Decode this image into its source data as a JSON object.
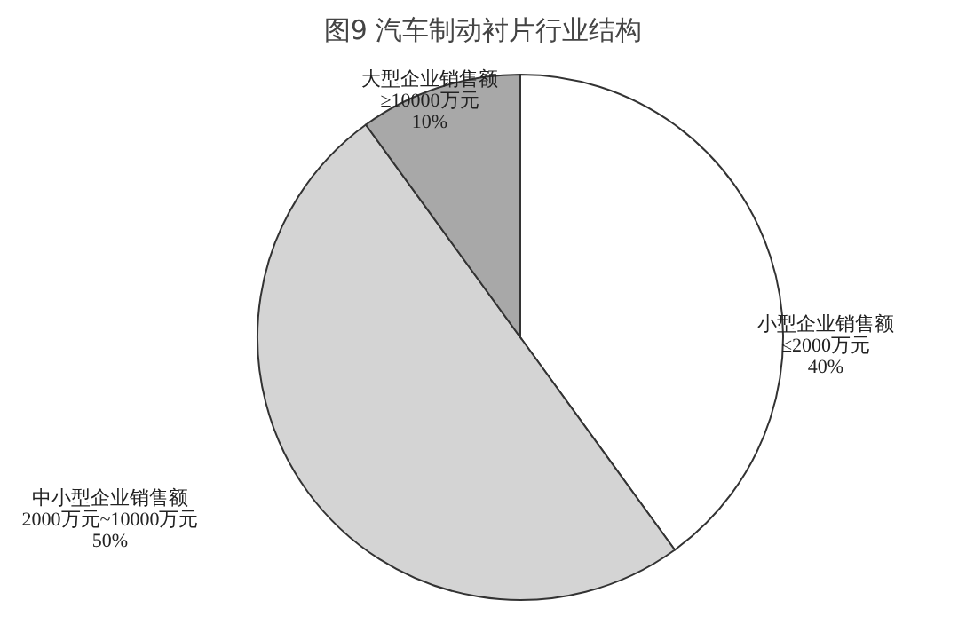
{
  "chart_data": {
    "type": "pie",
    "title": "图9  汽车制动衬片行业结构",
    "categories": [
      "小型企业销售额\n≤2000万元",
      "中小型企业销售额\n2000万元~10000万元",
      "大型企业销售额\n≥10000万元"
    ],
    "values": [
      40,
      50,
      10
    ],
    "value_labels": [
      "40%",
      "50%",
      "10%"
    ],
    "colors": [
      "#ffffff",
      "#d4d4d4",
      "#a8a8a8"
    ]
  }
}
